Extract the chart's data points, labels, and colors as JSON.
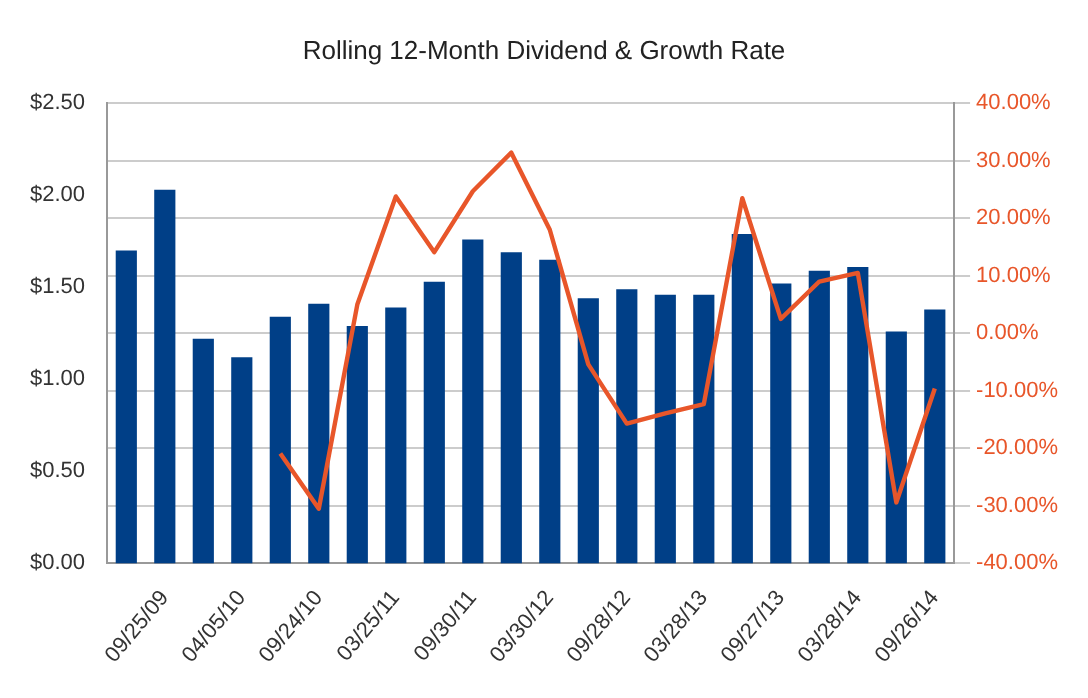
{
  "chart_data": {
    "type": "bar",
    "title": "Rolling 12-Month Dividend & Growth Rate",
    "categories": [
      null,
      "09/25/09",
      null,
      "04/05/10",
      null,
      "09/24/10",
      null,
      "03/25/11",
      null,
      "09/30/11",
      null,
      "03/30/12",
      null,
      "09/28/12",
      null,
      "03/28/13",
      null,
      "09/27/13",
      null,
      "03/28/14",
      null,
      "09/26/14"
    ],
    "series": [
      {
        "color": "#003f87",
        "values": [
          1.7,
          2.03,
          1.22,
          1.12,
          1.34,
          1.41,
          1.29,
          1.39,
          1.53,
          1.76,
          1.69,
          1.65,
          1.44,
          1.49,
          1.46,
          1.46,
          1.79,
          1.52,
          1.59,
          1.61,
          1.26,
          1.38
        ]
      },
      {
        "type": "line",
        "axis": "y2",
        "color": "#e8562a",
        "values": [
          null,
          null,
          null,
          null,
          -20.9,
          -30.5,
          5.0,
          23.8,
          14.1,
          24.7,
          31.4,
          18.0,
          -5.4,
          -15.7,
          -13.9,
          -12.3,
          23.5,
          2.5,
          9.0,
          10.5,
          -29.4,
          -9.6
        ]
      }
    ],
    "ylim": [
      0,
      2.5
    ],
    "yticks": [
      {
        "value": 0,
        "label": "$0.00"
      },
      {
        "value": 0.5,
        "label": "$0.50"
      },
      {
        "value": 1,
        "label": "$1.00"
      },
      {
        "value": 1.5,
        "label": "$1.50"
      },
      {
        "value": 2,
        "label": "$2.00"
      },
      {
        "value": 2.5,
        "label": "$2.50"
      }
    ],
    "y2lim": [
      -40,
      40
    ],
    "y2ticks": [
      {
        "value": -40,
        "label": "-40.00%"
      },
      {
        "value": -30,
        "label": "-30.00%"
      },
      {
        "value": -20,
        "label": "-20.00%"
      },
      {
        "value": -10,
        "label": "-10.00%"
      },
      {
        "value": 0,
        "label": "0.00%"
      },
      {
        "value": 10,
        "label": "10.00%"
      },
      {
        "value": 20,
        "label": "20.00%"
      },
      {
        "value": 30,
        "label": "30.00%"
      },
      {
        "value": 40,
        "label": "40.00%"
      }
    ],
    "grid": true,
    "legend": false,
    "marker": "none",
    "line_style": "solid"
  }
}
